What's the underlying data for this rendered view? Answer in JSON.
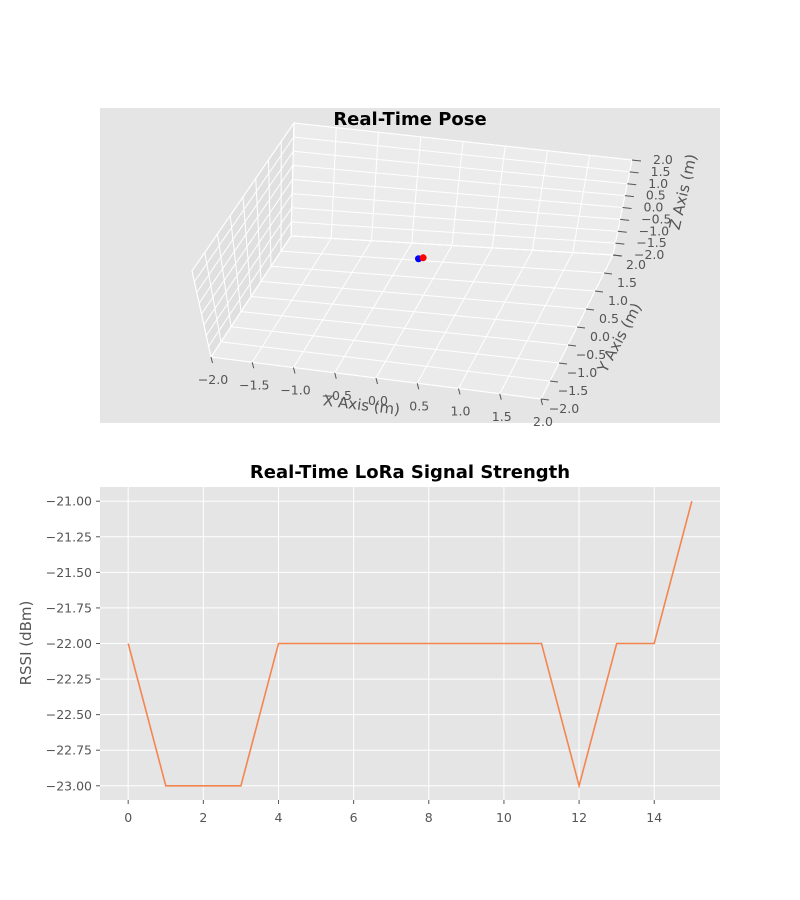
{
  "chart_data": [
    {
      "type": "scatter",
      "projection": "3d",
      "title": "Real-Time Pose",
      "xlabel": "X Axis (m)",
      "ylabel": "Y Axis (m)",
      "zlabel": "Z Axis (m)",
      "xlim": [
        -2,
        2
      ],
      "ylim": [
        -2,
        2
      ],
      "zlim": [
        -2,
        2
      ],
      "tick_labels": [
        "−2.0",
        "−1.5",
        "−1.0",
        "−0.5",
        "0.0",
        "0.5",
        "1.0",
        "1.5",
        "2.0"
      ],
      "grid": true,
      "points": [
        {
          "x": 0.0,
          "y": 0.0,
          "z": 0.0,
          "color": "#0000ff"
        },
        {
          "x": 0.05,
          "y": 0.02,
          "z": 0.03,
          "color": "#ff0000"
        }
      ]
    },
    {
      "type": "line",
      "title": "Real-Time LoRa Signal Strength",
      "xlabel": "",
      "ylabel": "RSSI (dBm)",
      "x": [
        0,
        1,
        2,
        3,
        4,
        5,
        6,
        7,
        8,
        9,
        10,
        11,
        12,
        13,
        14,
        15
      ],
      "y": [
        -22,
        -23,
        -23,
        -23,
        -22,
        -22,
        -22,
        -22,
        -22,
        -22,
        -22,
        -22,
        -23,
        -22,
        -22,
        -21
      ],
      "xticks": [
        0,
        2,
        4,
        6,
        8,
        10,
        12,
        14
      ],
      "xtick_labels": [
        "0",
        "2",
        "4",
        "6",
        "8",
        "10",
        "12",
        "14"
      ],
      "yticks": [
        -21.0,
        -21.25,
        -21.5,
        -21.75,
        -22.0,
        -22.25,
        -22.5,
        -22.75,
        -23.0
      ],
      "ytick_labels": [
        "−21.00",
        "−21.25",
        "−21.50",
        "−21.75",
        "−22.00",
        "−22.25",
        "−22.50",
        "−22.75",
        "−23.00"
      ],
      "xlim": [
        -0.75,
        15.75
      ],
      "ylim": [
        -23.1,
        -20.9
      ],
      "grid": true,
      "line_color": "#f5854f"
    }
  ]
}
